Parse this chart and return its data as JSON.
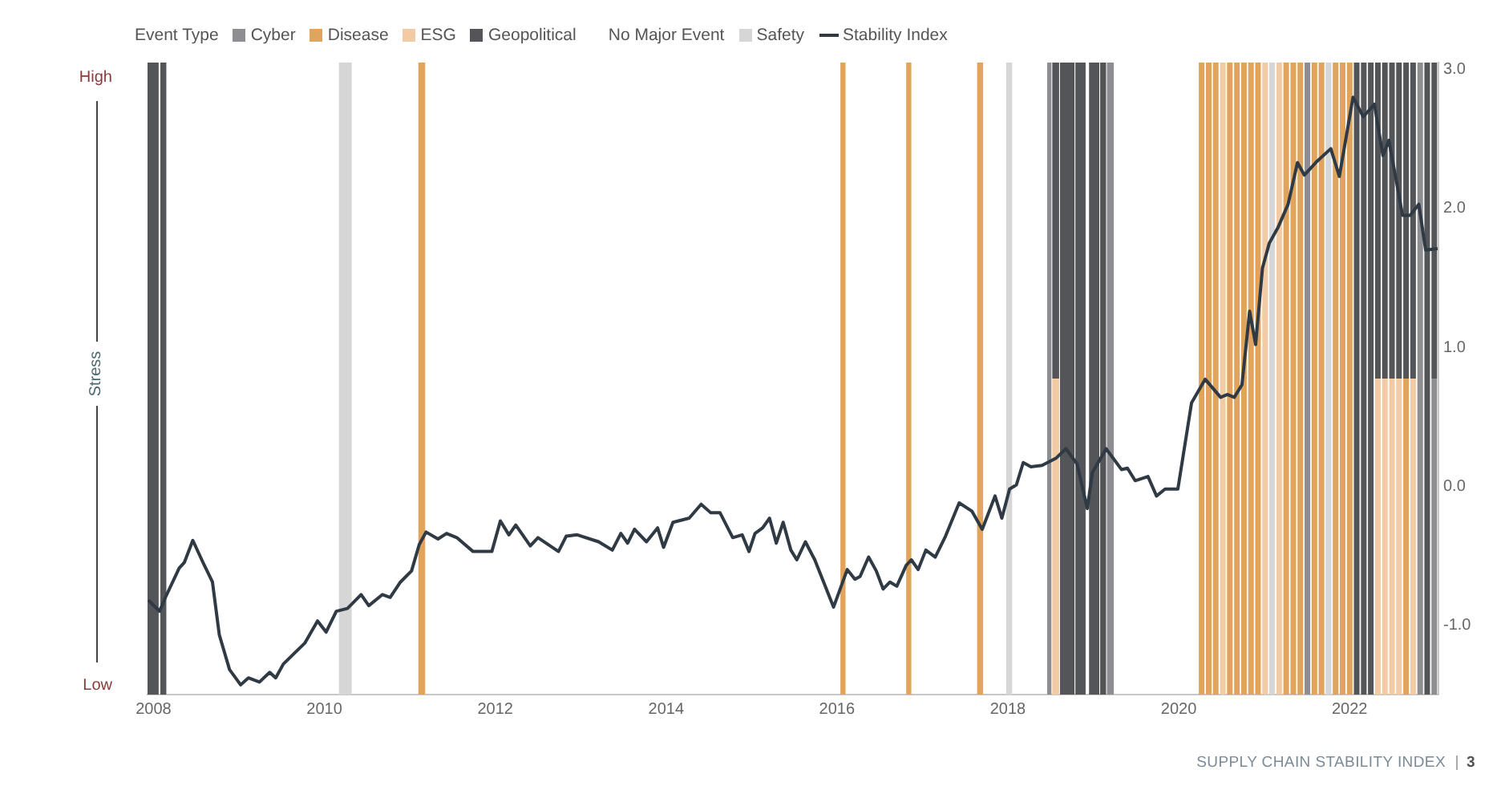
{
  "chart_data": {
    "type": "line",
    "legend_title": "Event Type",
    "legend": "top",
    "ylabel": "Stress",
    "marker": "none",
    "xlim": [
      2007.93,
      2023.04
    ],
    "xticks": [
      2008,
      2010,
      2012,
      2014,
      2016,
      2018,
      2020,
      2022
    ],
    "ylim": [
      -1.5,
      3.05
    ],
    "yticks": [
      {
        "value": 3,
        "label": "3.0"
      },
      {
        "value": 2,
        "label": "2.0"
      },
      {
        "value": 1,
        "label": "1.0"
      },
      {
        "value": 0,
        "label": "0.0"
      },
      {
        "value": -1,
        "label": "-1.0"
      }
    ],
    "series": [
      {
        "name": "Stability Index",
        "color": "#2f3a45",
        "x": [
          2007.94,
          2008.07,
          2008.14,
          2008.3,
          2008.36,
          2008.46,
          2008.58,
          2008.69,
          2008.77,
          2008.89,
          2009.02,
          2009.11,
          2009.24,
          2009.36,
          2009.43,
          2009.52,
          2009.77,
          2009.92,
          2010.02,
          2010.14,
          2010.27,
          2010.43,
          2010.52,
          2010.68,
          2010.77,
          2010.89,
          2011.02,
          2011.11,
          2011.19,
          2011.33,
          2011.43,
          2011.55,
          2011.74,
          2011.96,
          2012.06,
          2012.16,
          2012.24,
          2012.41,
          2012.5,
          2012.74,
          2012.83,
          2012.96,
          2013.21,
          2013.37,
          2013.47,
          2013.55,
          2013.63,
          2013.77,
          2013.9,
          2013.97,
          2014.08,
          2014.27,
          2014.41,
          2014.52,
          2014.63,
          2014.78,
          2014.89,
          2014.97,
          2015.04,
          2015.13,
          2015.21,
          2015.29,
          2015.37,
          2015.46,
          2015.53,
          2015.63,
          2015.74,
          2015.85,
          2015.96,
          2016.12,
          2016.21,
          2016.27,
          2016.37,
          2016.46,
          2016.54,
          2016.62,
          2016.7,
          2016.81,
          2016.87,
          2016.95,
          2017.04,
          2017.15,
          2017.27,
          2017.43,
          2017.58,
          2017.7,
          2017.85,
          2017.93,
          2018.02,
          2018.1,
          2018.18,
          2018.27,
          2018.4,
          2018.56,
          2018.68,
          2018.81,
          2018.93,
          2018.99,
          2019.15,
          2019.33,
          2019.4,
          2019.49,
          2019.64,
          2019.74,
          2019.84,
          2019.99,
          2020.15,
          2020.31,
          2020.49,
          2020.57,
          2020.65,
          2020.74,
          2020.83,
          2020.9,
          2020.98,
          2021.06,
          2021.16,
          2021.28,
          2021.39,
          2021.47,
          2021.62,
          2021.78,
          2021.88,
          2022.04,
          2022.16,
          2022.29,
          2022.39,
          2022.46,
          2022.62,
          2022.71,
          2022.81,
          2022.89,
          2023.03
        ],
        "values": [
          -0.82,
          -0.9,
          -0.8,
          -0.59,
          -0.55,
          -0.39,
          -0.55,
          -0.69,
          -1.07,
          -1.32,
          -1.43,
          -1.38,
          -1.41,
          -1.34,
          -1.38,
          -1.28,
          -1.13,
          -0.97,
          -1.05,
          -0.9,
          -0.88,
          -0.78,
          -0.86,
          -0.78,
          -0.8,
          -0.69,
          -0.61,
          -0.42,
          -0.33,
          -0.38,
          -0.34,
          -0.37,
          -0.47,
          -0.47,
          -0.25,
          -0.35,
          -0.28,
          -0.43,
          -0.37,
          -0.47,
          -0.36,
          -0.35,
          -0.4,
          -0.46,
          -0.34,
          -0.41,
          -0.31,
          -0.4,
          -0.3,
          -0.44,
          -0.26,
          -0.23,
          -0.13,
          -0.19,
          -0.19,
          -0.37,
          -0.35,
          -0.47,
          -0.34,
          -0.3,
          -0.23,
          -0.41,
          -0.26,
          -0.46,
          -0.53,
          -0.4,
          -0.53,
          -0.7,
          -0.87,
          -0.6,
          -0.67,
          -0.65,
          -0.51,
          -0.61,
          -0.74,
          -0.69,
          -0.72,
          -0.57,
          -0.53,
          -0.6,
          -0.46,
          -0.51,
          -0.36,
          -0.12,
          -0.18,
          -0.31,
          -0.07,
          -0.23,
          -0.02,
          0.01,
          0.17,
          0.14,
          0.15,
          0.2,
          0.27,
          0.16,
          -0.16,
          0.1,
          0.27,
          0.12,
          0.13,
          0.04,
          0.07,
          -0.07,
          -0.02,
          -0.02,
          0.6,
          0.77,
          0.64,
          0.66,
          0.64,
          0.73,
          1.26,
          1.02,
          1.57,
          1.75,
          1.86,
          2.03,
          2.33,
          2.24,
          2.34,
          2.43,
          2.23,
          2.8,
          2.66,
          2.75,
          2.38,
          2.49,
          1.95,
          1.95,
          2.03,
          1.7,
          1.71
        ]
      }
    ],
    "bands": [
      {
        "axis": "x",
        "from": 2018.46,
        "to": 2018.51,
        "label": "Cyber",
        "color": "#8e8e92"
      },
      {
        "axis": "x",
        "from": 2011.1,
        "to": 2011.18,
        "label": "Disease",
        "color": "#e0a45c"
      },
      {
        "axis": "x",
        "from": 2018.52,
        "to": 2018.6,
        "label": "ESG",
        "color": "#f2cba5"
      },
      {
        "axis": "x",
        "from": 2018.52,
        "to": 2018.6,
        "label": "Geopolitical",
        "color": "#545558"
      },
      {
        "axis": "x",
        "from": 2010.17,
        "to": 2010.32,
        "label": "Safety",
        "color": "#d6d6d6"
      },
      {
        "axis": "x",
        "from": 2007.93,
        "to": 2008.06,
        "color": "#545558"
      },
      {
        "axis": "x",
        "from": 2008.08,
        "to": 2008.15,
        "color": "#545558"
      },
      {
        "axis": "x",
        "from": 2016.04,
        "to": 2016.1,
        "color": "#e0a45c"
      },
      {
        "axis": "x",
        "from": 2016.81,
        "to": 2016.87,
        "color": "#e0a45c"
      },
      {
        "axis": "x",
        "from": 2017.64,
        "to": 2017.71,
        "color": "#e0a45c"
      },
      {
        "axis": "x",
        "from": 2017.98,
        "to": 2018.05,
        "color": "#d6d6d6"
      },
      {
        "axis": "x",
        "from": 2018.61,
        "to": 2018.78,
        "color": "#545558"
      },
      {
        "axis": "x",
        "from": 2018.79,
        "to": 2018.91,
        "color": "#545558"
      },
      {
        "axis": "x",
        "from": 2018.95,
        "to": 2019.07,
        "color": "#545558"
      },
      {
        "axis": "x",
        "from": 2019.08,
        "to": 2019.15,
        "color": "#545558"
      },
      {
        "axis": "x",
        "from": 2019.16,
        "to": 2019.24,
        "color": "#8e8e92"
      },
      {
        "axis": "x",
        "from": 2020.235,
        "to": 2020.301,
        "color": "#e0a45c"
      },
      {
        "axis": "x",
        "from": 2020.318,
        "to": 2020.384,
        "color": "#e0a45c"
      },
      {
        "axis": "x",
        "from": 2020.4,
        "to": 2020.466,
        "color": "#e0a45c"
      },
      {
        "axis": "x",
        "from": 2020.483,
        "to": 2020.549,
        "color": "#f2cba5"
      },
      {
        "axis": "x",
        "from": 2020.565,
        "to": 2020.631,
        "color": "#e0a45c"
      },
      {
        "axis": "x",
        "from": 2020.648,
        "to": 2020.714,
        "color": "#e0a45c"
      },
      {
        "axis": "x",
        "from": 2020.73,
        "to": 2020.796,
        "color": "#e0a45c"
      },
      {
        "axis": "x",
        "from": 2020.813,
        "to": 2020.879,
        "color": "#e0a45c"
      },
      {
        "axis": "x",
        "from": 2020.895,
        "to": 2020.961,
        "color": "#e0a45c"
      },
      {
        "axis": "x",
        "from": 2020.978,
        "to": 2021.044,
        "color": "#f2cba5"
      },
      {
        "axis": "x",
        "from": 2021.06,
        "to": 2021.126,
        "color": "#d6d6d6"
      },
      {
        "axis": "x",
        "from": 2021.143,
        "to": 2021.209,
        "color": "#f2cba5"
      },
      {
        "axis": "x",
        "from": 2021.225,
        "to": 2021.291,
        "color": "#e0a45c"
      },
      {
        "axis": "x",
        "from": 2021.308,
        "to": 2021.374,
        "color": "#e0a45c"
      },
      {
        "axis": "x",
        "from": 2021.39,
        "to": 2021.456,
        "color": "#e0a45c"
      },
      {
        "axis": "x",
        "from": 2021.473,
        "to": 2021.539,
        "color": "#8e8e92"
      },
      {
        "axis": "x",
        "from": 2021.555,
        "to": 2021.621,
        "color": "#e0a45c"
      },
      {
        "axis": "x",
        "from": 2021.638,
        "to": 2021.704,
        "color": "#e0a45c"
      },
      {
        "axis": "x",
        "from": 2021.72,
        "to": 2021.786,
        "color": "#d6d6d6"
      },
      {
        "axis": "x",
        "from": 2021.803,
        "to": 2021.869,
        "color": "#e0a45c"
      },
      {
        "axis": "x",
        "from": 2021.885,
        "to": 2021.951,
        "color": "#e0a45c"
      },
      {
        "axis": "x",
        "from": 2021.968,
        "to": 2022.034,
        "color": "#e0a45c"
      },
      {
        "axis": "x",
        "from": 2022.05,
        "to": 2022.116,
        "color": "#545558"
      },
      {
        "axis": "x",
        "from": 2022.133,
        "to": 2022.199,
        "color": "#545558"
      },
      {
        "axis": "x",
        "from": 2022.215,
        "to": 2022.281,
        "color": "#545558"
      },
      {
        "axis": "x",
        "from": 2022.298,
        "to": 2022.364,
        "color": "#f2cba5"
      },
      {
        "axis": "x",
        "from": 2022.298,
        "to": 2022.364,
        "color": "#545558"
      },
      {
        "axis": "x",
        "from": 2022.38,
        "to": 2022.446,
        "color": "#f2cba5"
      },
      {
        "axis": "x",
        "from": 2022.38,
        "to": 2022.446,
        "color": "#545558"
      },
      {
        "axis": "x",
        "from": 2022.463,
        "to": 2022.529,
        "color": "#f2cba5"
      },
      {
        "axis": "x",
        "from": 2022.463,
        "to": 2022.529,
        "color": "#545558"
      },
      {
        "axis": "x",
        "from": 2022.545,
        "to": 2022.611,
        "color": "#f2cba5"
      },
      {
        "axis": "x",
        "from": 2022.545,
        "to": 2022.611,
        "color": "#545558"
      },
      {
        "axis": "x",
        "from": 2022.628,
        "to": 2022.694,
        "color": "#e0a45c"
      },
      {
        "axis": "x",
        "from": 2022.628,
        "to": 2022.694,
        "color": "#545558"
      },
      {
        "axis": "x",
        "from": 2022.71,
        "to": 2022.776,
        "color": "#f2cba5"
      },
      {
        "axis": "x",
        "from": 2022.71,
        "to": 2022.776,
        "color": "#545558"
      },
      {
        "axis": "x",
        "from": 2022.793,
        "to": 2022.859,
        "color": "#8e8e92"
      },
      {
        "axis": "x",
        "from": 2022.875,
        "to": 2022.941,
        "color": "#545558"
      },
      {
        "axis": "x",
        "from": 2022.958,
        "to": 2023.024,
        "color": "#8e8e92"
      },
      {
        "axis": "x",
        "from": 2022.958,
        "to": 2023.024,
        "color": "#545558"
      }
    ],
    "annotations": [
      "No Major Event",
      "High",
      "Low",
      "SUPPLY CHAIN STABILITY INDEX",
      "3"
    ]
  }
}
